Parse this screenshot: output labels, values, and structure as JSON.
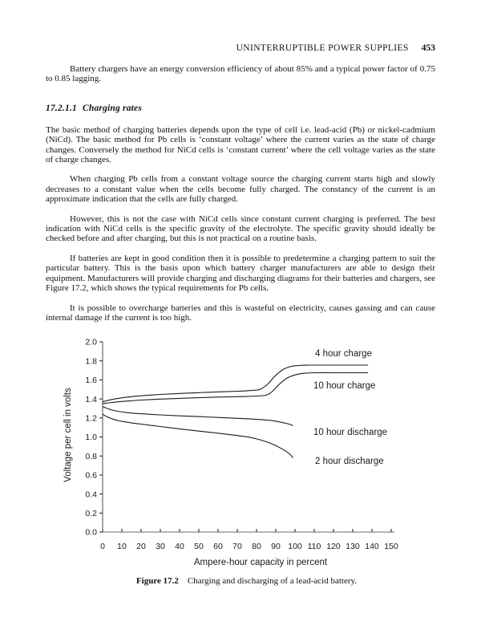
{
  "page": {
    "header": {
      "running_title": "UNINTERRUPTIBLE POWER SUPPLIES",
      "page_number": "453"
    },
    "paragraphs": {
      "p1": "Battery chargers have an energy conversion efficiency of about 85% and a typical power factor of 0.75 to 0.85 lagging.",
      "p2": "The basic method of charging batteries depends upon the type of cell i.e. lead-acid (Pb) or nickel-cadmium (NiCd). The basic method for Pb cells is ‘constant voltage’ where the current varies as the state of charge changes. Conversely the method for NiCd cells is ‘constant current’ where the cell voltage varies as the state of charge changes.",
      "p3": "When charging Pb cells from a constant voltage source the charging current starts high and slowly decreases to a constant value when the cells become fully charged. The constancy of the current is an approximate indication that the cells are fully charged.",
      "p4": "However, this is not the case with NiCd cells since constant current charging is preferred. The best indication with NiCd cells is the specific gravity of the electrolyte. The specific gravity should ideally be checked before and after charging, but this is not practical on a routine basis.",
      "p5": "If batteries are kept in good condition then it is possible to predetermine a charging pattern to suit the particular battery. This is the basis upon which battery charger manufacturers are able to design their equipment. Manufacturers will provide charging and discharging diagrams for their batteries and chargers, see Figure 17.2, which shows the typical requirements for Pb cells.",
      "p6": "It is possible to overcharge batteries and this is wasteful on electricity, causes gassing and can cause internal damage if the current is too high."
    },
    "section": {
      "number": "17.2.1.1",
      "title": "Charging rates"
    },
    "figure_caption": {
      "label": "Figure 17.2",
      "text": "Charging and discharging of a lead-acid battery."
    }
  },
  "chart_data": {
    "type": "line",
    "title": "",
    "xlabel": "Ampere-hour capacity in percent",
    "ylabel": "Voltage per cell in volts",
    "xlim": [
      0,
      150
    ],
    "ylim": [
      0.0,
      2.0
    ],
    "grid": false,
    "legend_position": "inline-labels",
    "x_tick_labels": [
      "0",
      "10",
      "20",
      "30",
      "40",
      "50",
      "60",
      "70",
      "80",
      "90",
      "100",
      "110",
      "120",
      "130",
      "140",
      "150"
    ],
    "y_tick_labels": [
      "0.0",
      "0.2",
      "0.4",
      "0.6",
      "0.8",
      "1.0",
      "1.2",
      "1.4",
      "1.6",
      "1.8",
      "2.0"
    ],
    "series": [
      {
        "name": "4 hour charge",
        "points": [
          [
            0,
            1.37
          ],
          [
            5,
            1.395
          ],
          [
            10,
            1.412
          ],
          [
            15,
            1.424
          ],
          [
            20,
            1.433
          ],
          [
            30,
            1.447
          ],
          [
            40,
            1.457
          ],
          [
            50,
            1.466
          ],
          [
            60,
            1.474
          ],
          [
            70,
            1.481
          ],
          [
            78,
            1.49
          ],
          [
            82,
            1.502
          ],
          [
            86,
            1.56
          ],
          [
            90,
            1.648
          ],
          [
            94,
            1.712
          ],
          [
            98,
            1.742
          ],
          [
            102,
            1.752
          ],
          [
            108,
            1.755
          ],
          [
            120,
            1.755
          ],
          [
            130,
            1.755
          ],
          [
            138,
            1.755
          ]
        ]
      },
      {
        "name": "10 hour charge",
        "points": [
          [
            0,
            1.35
          ],
          [
            5,
            1.363
          ],
          [
            10,
            1.373
          ],
          [
            15,
            1.381
          ],
          [
            20,
            1.388
          ],
          [
            30,
            1.398
          ],
          [
            40,
            1.406
          ],
          [
            50,
            1.413
          ],
          [
            60,
            1.419
          ],
          [
            70,
            1.424
          ],
          [
            80,
            1.43
          ],
          [
            85,
            1.44
          ],
          [
            88,
            1.475
          ],
          [
            92,
            1.558
          ],
          [
            96,
            1.62
          ],
          [
            100,
            1.652
          ],
          [
            104,
            1.668
          ],
          [
            110,
            1.675
          ],
          [
            120,
            1.675
          ],
          [
            130,
            1.675
          ],
          [
            138,
            1.675
          ]
        ]
      },
      {
        "name": "10 hour discharge",
        "points": [
          [
            0,
            1.32
          ],
          [
            2,
            1.303
          ],
          [
            5,
            1.283
          ],
          [
            8,
            1.27
          ],
          [
            12,
            1.258
          ],
          [
            16,
            1.25
          ],
          [
            20,
            1.244
          ],
          [
            30,
            1.232
          ],
          [
            40,
            1.222
          ],
          [
            50,
            1.214
          ],
          [
            60,
            1.205
          ],
          [
            70,
            1.196
          ],
          [
            78,
            1.188
          ],
          [
            84,
            1.18
          ],
          [
            88,
            1.172
          ],
          [
            92,
            1.158
          ],
          [
            96,
            1.14
          ],
          [
            99,
            1.12
          ]
        ]
      },
      {
        "name": "2 hour discharge",
        "points": [
          [
            0,
            1.24
          ],
          [
            2,
            1.215
          ],
          [
            5,
            1.19
          ],
          [
            8,
            1.172
          ],
          [
            12,
            1.158
          ],
          [
            16,
            1.145
          ],
          [
            20,
            1.135
          ],
          [
            30,
            1.11
          ],
          [
            40,
            1.085
          ],
          [
            50,
            1.062
          ],
          [
            60,
            1.04
          ],
          [
            70,
            1.015
          ],
          [
            76,
            0.998
          ],
          [
            80,
            0.98
          ],
          [
            85,
            0.95
          ],
          [
            90,
            0.91
          ],
          [
            94,
            0.865
          ],
          [
            97,
            0.825
          ],
          [
            99,
            0.78
          ]
        ]
      }
    ]
  }
}
